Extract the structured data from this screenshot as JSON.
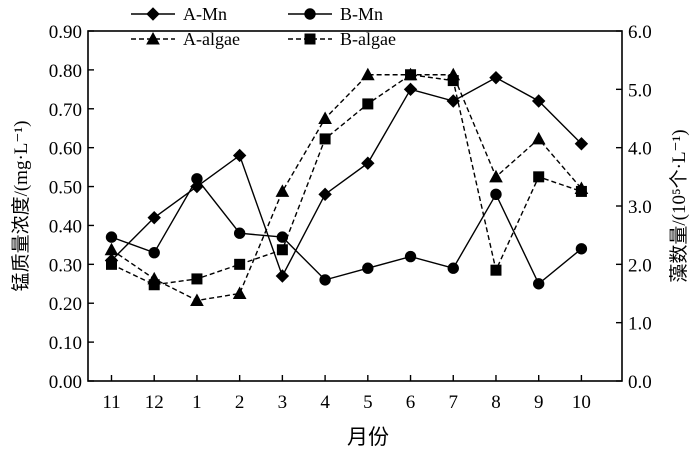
{
  "chart_data": {
    "type": "line",
    "categories": [
      "11",
      "12",
      "1",
      "2",
      "3",
      "4",
      "5",
      "6",
      "7",
      "8",
      "9",
      "10"
    ],
    "xlabel": "月份",
    "ylabel_left": "锰质量浓度/(mg·L⁻¹)",
    "ylabel_right": "藻数量/(10⁵个·L⁻¹)",
    "ylim_left": [
      0,
      0.9
    ],
    "ylim_right": [
      0,
      6.0
    ],
    "yticks_left": [
      "0.00",
      "0.10",
      "0.20",
      "0.30",
      "0.40",
      "0.50",
      "0.60",
      "0.70",
      "0.80",
      "0.90"
    ],
    "yticks_right": [
      "0.0",
      "1.0",
      "2.0",
      "3.0",
      "4.0",
      "5.0",
      "6.0"
    ],
    "legend_position": "top",
    "grid": false,
    "series": [
      {
        "name": "A-Mn",
        "axis": "left",
        "marker": "diamond",
        "dash": "solid",
        "values": [
          0.31,
          0.42,
          0.5,
          0.58,
          0.27,
          0.48,
          0.56,
          0.75,
          0.72,
          0.78,
          0.72,
          0.61
        ]
      },
      {
        "name": "B-Mn",
        "axis": "left",
        "marker": "circle",
        "dash": "solid",
        "values": [
          0.37,
          0.33,
          0.52,
          0.38,
          0.37,
          0.26,
          0.29,
          0.32,
          0.29,
          0.48,
          0.25,
          0.34
        ]
      },
      {
        "name": "A-algae",
        "axis": "right",
        "marker": "triangle",
        "dash": "dashed",
        "values": [
          2.25,
          1.75,
          1.38,
          1.5,
          3.25,
          4.5,
          5.25,
          5.25,
          5.25,
          3.5,
          4.15,
          3.3
        ]
      },
      {
        "name": "B-algae",
        "axis": "right",
        "marker": "square",
        "dash": "dashed",
        "values": [
          2.0,
          1.65,
          1.75,
          2.0,
          2.25,
          4.15,
          4.75,
          5.25,
          5.15,
          1.9,
          3.5,
          3.25
        ]
      }
    ]
  }
}
